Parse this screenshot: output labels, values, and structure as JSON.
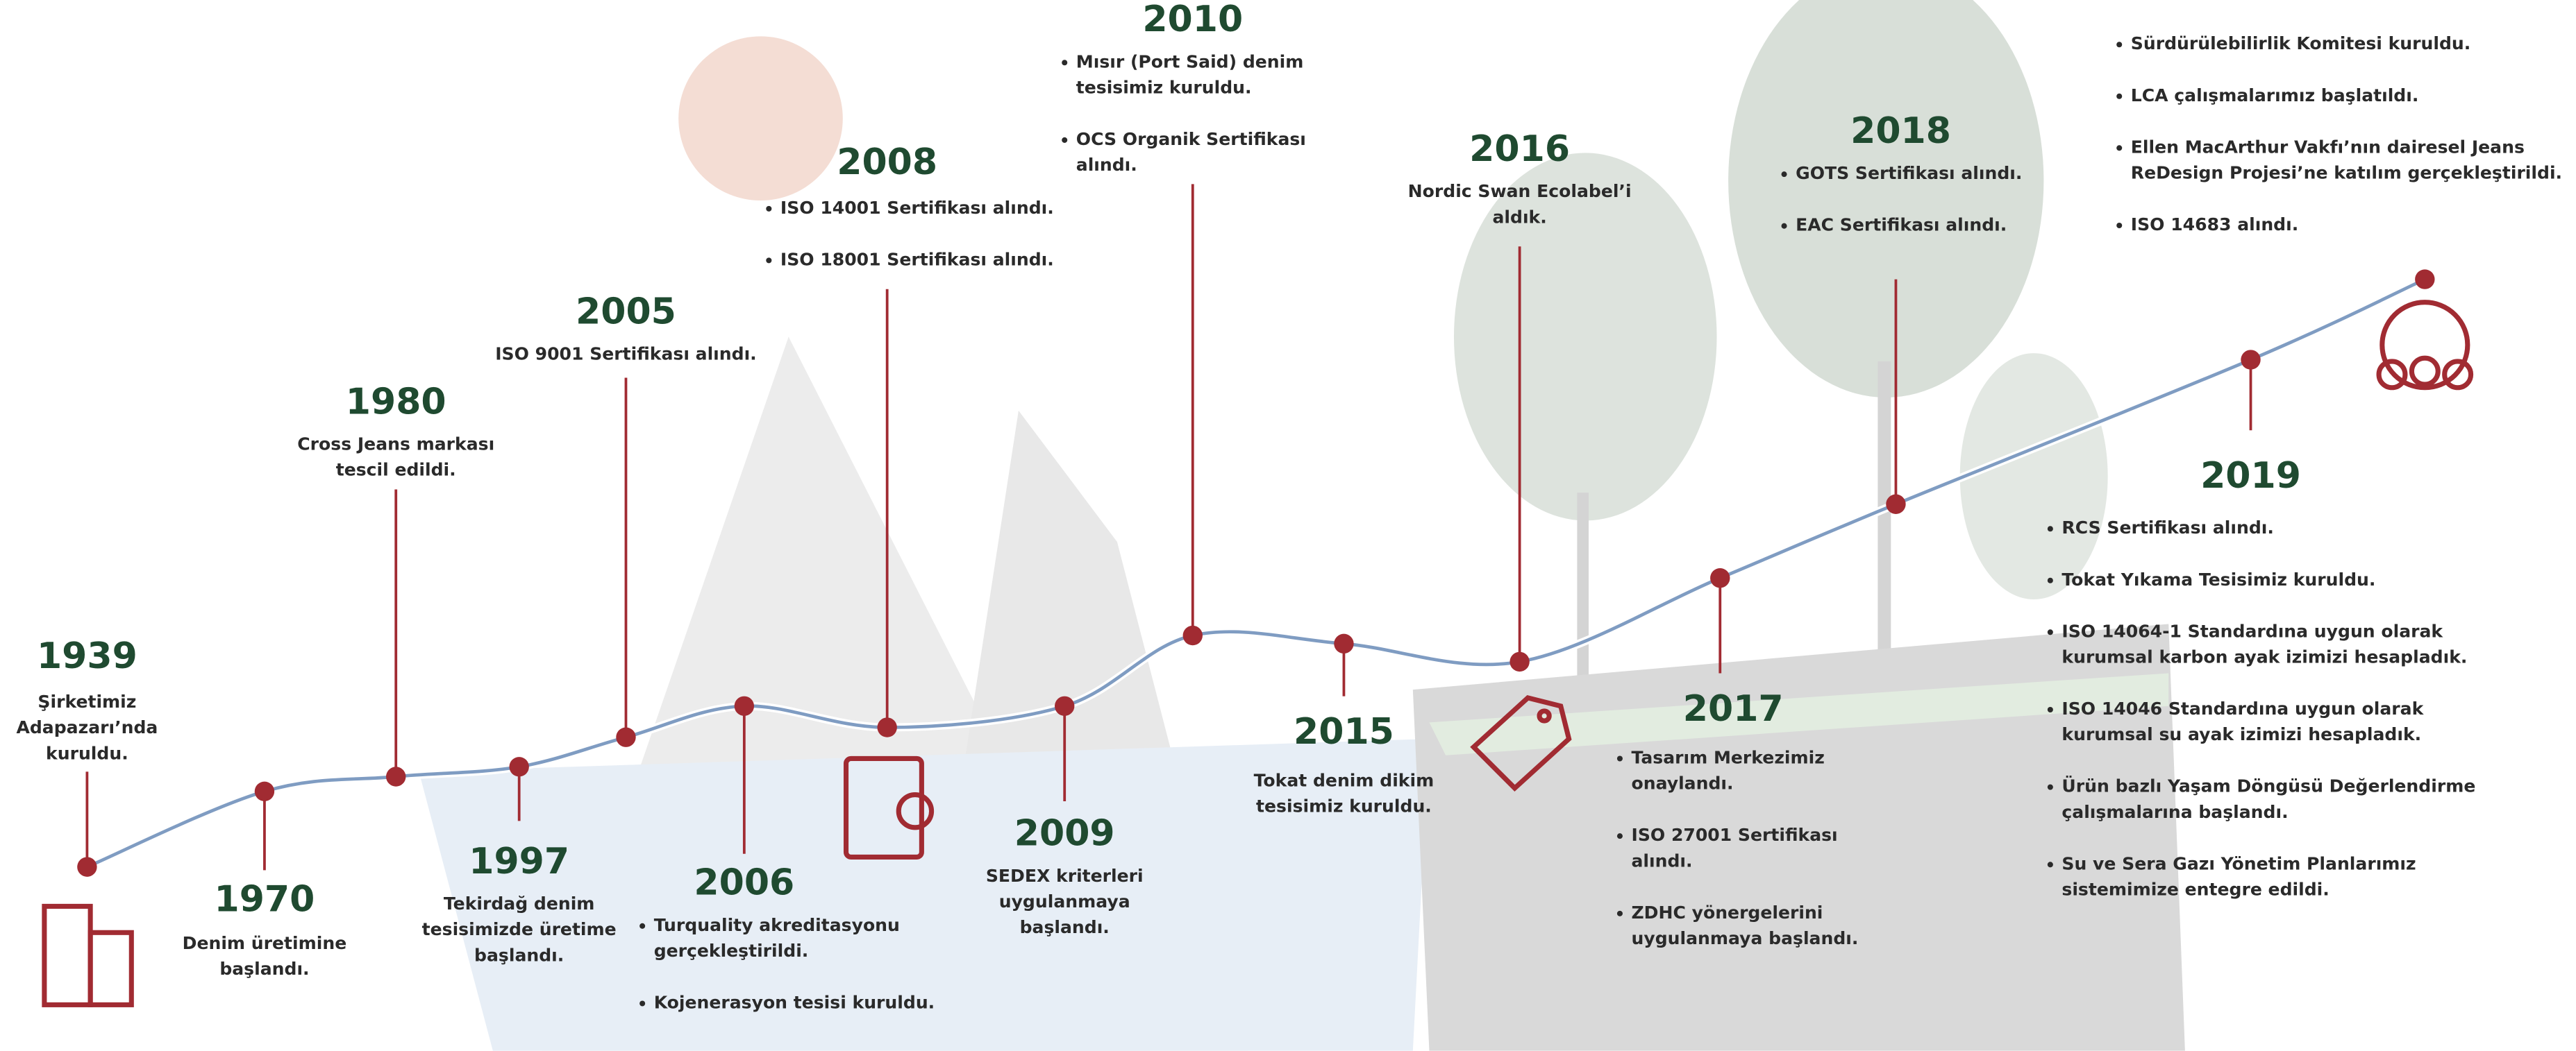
{
  "events": [
    {
      "year": "1939",
      "items": [
        [
          "Şirketimiz",
          "Adapazarı’nda",
          "kuruldu."
        ]
      ]
    },
    {
      "year": "1970",
      "items": [
        [
          "Denim üretimine",
          "başlandı."
        ]
      ]
    },
    {
      "year": "1980",
      "items": [
        [
          "Cross Jeans markası",
          "tescil edildi."
        ]
      ]
    },
    {
      "year": "1997",
      "items": [
        [
          "Tekirdağ denim",
          "tesisimizde üretime",
          "başlandı."
        ]
      ]
    },
    {
      "year": "2005",
      "items": [
        [
          "ISO 9001 Sertifikası alındı."
        ]
      ]
    },
    {
      "year": "2006",
      "items": [
        [
          "Turquality akreditasyonu",
          "gerçekleştirildi."
        ],
        [
          "Kojenerasyon tesisi kuruldu."
        ]
      ]
    },
    {
      "year": "2008",
      "items": [
        [
          "ISO 14001 Sertifikası alındı."
        ],
        [
          "ISO 18001 Sertifikası alındı."
        ]
      ]
    },
    {
      "year": "2009",
      "items": [
        [
          "SEDEX kriterleri",
          "uygulanmaya",
          "başlandı."
        ]
      ]
    },
    {
      "year": "2010",
      "items": [
        [
          "Mısır (Port Said) denim",
          "tesisimiz kuruldu."
        ],
        [
          "OCS Organik Sertifikası",
          "alındı."
        ]
      ]
    },
    {
      "year": "2015",
      "items": [
        [
          "Tokat denim dikim",
          "tesisimiz kuruldu."
        ]
      ]
    },
    {
      "year": "2016",
      "items": [
        [
          "Nordic Swan Ecolabel’i",
          "aldık."
        ]
      ]
    },
    {
      "year": "2017",
      "items": [
        [
          "Tasarım Merkezimiz",
          "onaylandı."
        ],
        [
          "ISO 27001 Sertifikası",
          "alındı."
        ],
        [
          "ZDHC yönergelerini",
          "uygulanmaya başlandı."
        ]
      ]
    },
    {
      "year": "2018",
      "items": [
        [
          "GOTS Sertifikası alındı."
        ],
        [
          "EAC Sertifikası alındı."
        ]
      ]
    },
    {
      "year": "2019",
      "items": [
        [
          "RCS Sertifikası alındı."
        ],
        [
          "Tokat Yıkama Tesisimiz kuruldu."
        ],
        [
          "ISO 14064-1 Standardına uygun olarak",
          "kurumsal karbon ayak izimizi hesapladık."
        ],
        [
          "ISO 14046 Standardına uygun olarak",
          "kurumsal su ayak izimizi hesapladık."
        ],
        [
          "Ürün bazlı Yaşam Döngüsü Değerlendirme",
          "çalışmalarına başlandı."
        ],
        [
          "Su ve Sera Gazı Yönetim Planlarımız",
          "sistemimize entegre edildi."
        ]
      ]
    },
    {
      "items": [
        [
          "Sürdürülebilirlik Komitesi kuruldu."
        ],
        [
          "LCA çalışmalarımız başlatıldı."
        ],
        [
          "Ellen MacArthur Vakfı’nın dairesel Jeans",
          "ReDesign Projesi’ne katılım gerçekleştirildi."
        ],
        [
          "ISO 14683 alındı."
        ]
      ]
    }
  ]
}
